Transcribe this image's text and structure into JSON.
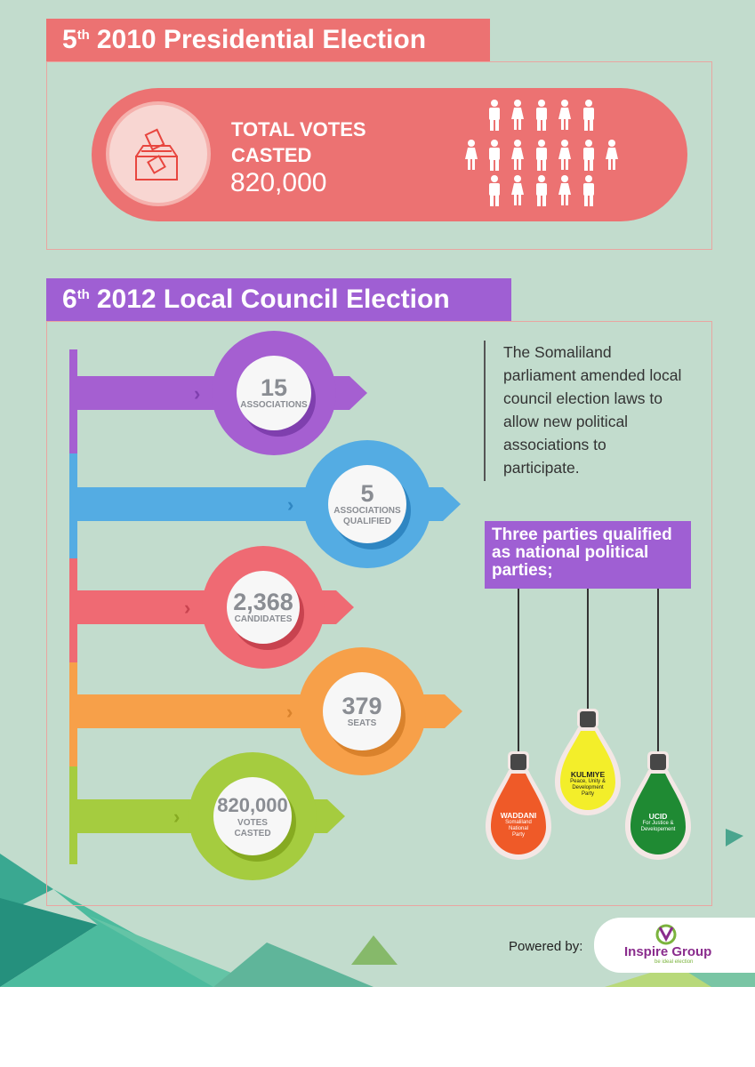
{
  "section1": {
    "title_sup": "th",
    "title_num": "5",
    "title_text": "2010 Presidential Election",
    "total_label_line1": "TOTAL VOTES",
    "total_label_line2": "CASTED",
    "total_value": "820,000",
    "icons": [
      "ballot-box-icon",
      "male-person-icon",
      "female-person-icon"
    ]
  },
  "section2": {
    "title_num": "6",
    "title_sup": "th",
    "title_text": "2012 Local Council Election",
    "stats": [
      {
        "value": "15",
        "label1": "ASSOCIATIONS",
        "label2": "",
        "color": "#a55fd1"
      },
      {
        "value": "5",
        "label1": "ASSOCIATIONS",
        "label2": "QUALIFIED",
        "color": "#54ace3"
      },
      {
        "value": "2,368",
        "label1": "CANDIDATES",
        "label2": "",
        "color": "#ef6a73"
      },
      {
        "value": "379",
        "label1": "SEATS",
        "label2": "",
        "color": "#f7a049"
      },
      {
        "value": "820,000",
        "label1": "VOTES",
        "label2": "CASTED",
        "color": "#a5cc3f"
      }
    ],
    "description_lines": [
      "The Somaliland",
      "parliament amended local",
      "council election laws to",
      "allow new political",
      "associations to",
      "participate."
    ],
    "parties_heading_lines": [
      "Three parties qualified",
      "as national political",
      "parties;"
    ],
    "parties": [
      {
        "name": "WADDANI",
        "sub1": "Somaliland",
        "sub2": "National",
        "sub3": "Party",
        "color": "#ef5a28"
      },
      {
        "name": "KULMIYE",
        "sub1": "Peace, Unity &",
        "sub2": "Development",
        "sub3": "Party",
        "color": "#f3ee2a"
      },
      {
        "name": "UCID",
        "sub1": "For Justice &",
        "sub2": "Developement",
        "sub3": "",
        "color": "#1f8a33"
      }
    ]
  },
  "footer": {
    "powered_by": "Powered by:",
    "logo_text": "Inspire Group",
    "logo_tagline": "be ideal election"
  },
  "colors": {
    "background": "#c2dccd",
    "salmon": "#ec7272",
    "purple": "#9f5fd3"
  }
}
